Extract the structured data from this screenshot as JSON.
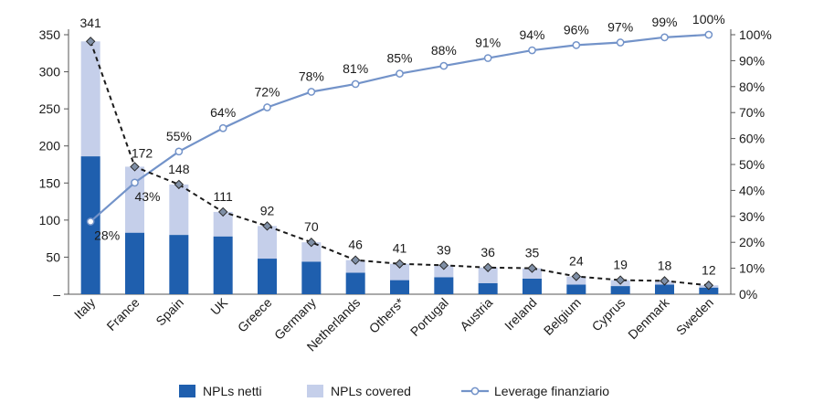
{
  "chart_data": {
    "type": "bar",
    "categories": [
      "Italy",
      "France",
      "Spain",
      "UK",
      "Greece",
      "Germany",
      "Netherlands",
      "Others*",
      "Portugal",
      "Austria",
      "Ireland",
      "Belgium",
      "Cyprus",
      "Denmark",
      "Sweden"
    ],
    "series": [
      {
        "name": "NPLs netti",
        "kind": "bar-stacked",
        "color": "#1f5fae",
        "values": [
          186,
          83,
          80,
          78,
          48,
          44,
          29,
          19,
          23,
          15,
          21,
          13,
          11,
          13,
          9
        ]
      },
      {
        "name": "NPLs covered",
        "kind": "bar-stacked",
        "color": "#c5cfea",
        "values": [
          155,
          89,
          68,
          33,
          44,
          26,
          17,
          22,
          16,
          21,
          14,
          11,
          8,
          5,
          3
        ]
      },
      {
        "name": "Leverage finanziario",
        "kind": "line",
        "axis": "right",
        "color": "#7393c9",
        "values": [
          28,
          43,
          55,
          64,
          72,
          78,
          81,
          85,
          88,
          91,
          94,
          96,
          97,
          99,
          100
        ],
        "labels": [
          "28%",
          "43%",
          "55%",
          "64%",
          "72%",
          "78%",
          "81%",
          "85%",
          "88%",
          "91%",
          "94%",
          "96%",
          "97%",
          "99%",
          "100%"
        ]
      }
    ],
    "totals_line": {
      "color": "#1a1a1a",
      "style": "dashed",
      "marker": "diamond",
      "marker_color": "#7f8fa6",
      "values": [
        341,
        172,
        148,
        111,
        92,
        70,
        46,
        41,
        39,
        36,
        35,
        24,
        19,
        18,
        12
      ]
    },
    "total_labels": [
      "341",
      "172",
      "148",
      "111",
      "92",
      "70",
      "46",
      "41",
      "39",
      "36",
      "35",
      "24",
      "19",
      "18",
      "12"
    ],
    "y_left": {
      "min": 0,
      "max": 350,
      "ticks": [
        0,
        50,
        100,
        150,
        200,
        250,
        300,
        350
      ],
      "tick_labels": [
        "–",
        "50",
        "100",
        "150",
        "200",
        "250",
        "300",
        "350"
      ]
    },
    "y_right": {
      "min": 0,
      "max": 100,
      "ticks": [
        0,
        10,
        20,
        30,
        40,
        50,
        60,
        70,
        80,
        90,
        100
      ],
      "tick_labels": [
        "0%",
        "10%",
        "20%",
        "30%",
        "40%",
        "50%",
        "60%",
        "70%",
        "80%",
        "90%",
        "100%"
      ]
    },
    "grid": false,
    "legend_position": "bottom",
    "legend": [
      {
        "label": "NPLs netti",
        "type": "box",
        "color": "#1f5fae"
      },
      {
        "label": "NPLs covered",
        "type": "box",
        "color": "#c5cfea"
      },
      {
        "label": "Leverage finanziario",
        "type": "line",
        "color": "#7393c9"
      }
    ]
  }
}
